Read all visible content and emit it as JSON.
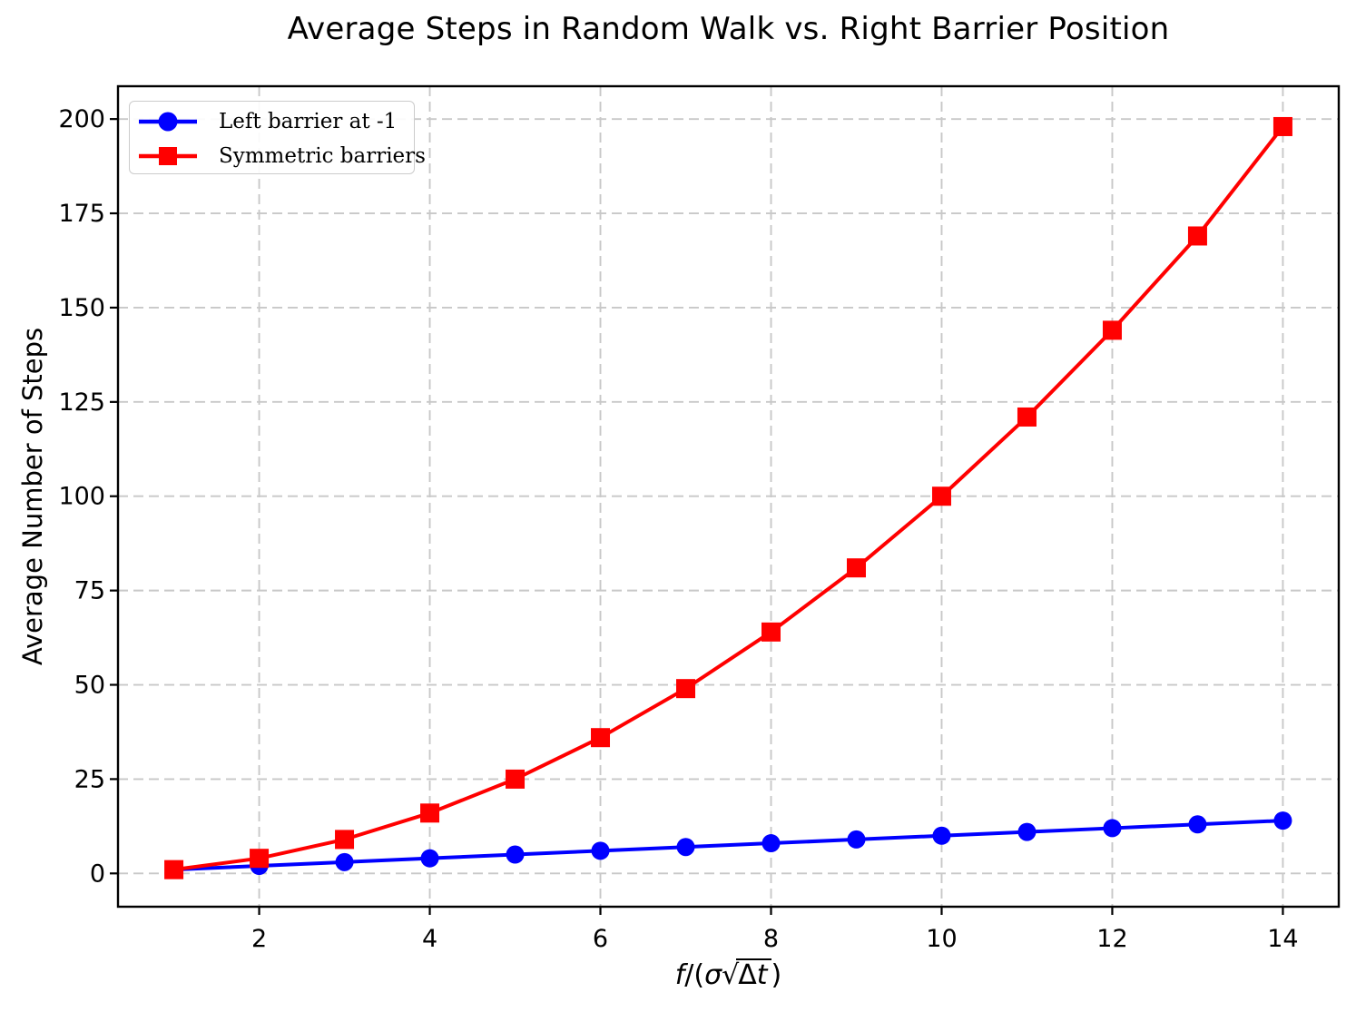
{
  "figure": {
    "background": "#ffffff"
  },
  "chart_data": {
    "type": "line",
    "title": "Average Steps in Random Walk vs. Right Barrier Position",
    "xlabel": "f/(σ√Δt)",
    "ylabel": "Average Number of Steps",
    "x": [
      1,
      2,
      3,
      4,
      5,
      6,
      7,
      8,
      9,
      10,
      11,
      12,
      13,
      14
    ],
    "series": [
      {
        "name": "Left barrier at -1",
        "color": "#0000ff",
        "marker": "circle",
        "values": [
          1,
          2,
          3,
          4,
          5,
          6,
          7,
          8,
          9,
          10,
          11,
          12,
          13,
          14
        ]
      },
      {
        "name": "Symmetric barriers",
        "color": "#ff0000",
        "marker": "square",
        "values": [
          1,
          4,
          9,
          16,
          25,
          36,
          49,
          64,
          81,
          100,
          121,
          144,
          169,
          198
        ]
      }
    ],
    "x_ticks": [
      2,
      4,
      6,
      8,
      10,
      12,
      14
    ],
    "y_ticks": [
      0,
      25,
      50,
      75,
      100,
      125,
      150,
      175,
      200
    ],
    "xlim": [
      0.345,
      14.655
    ],
    "ylim": [
      -8.83,
      208.7
    ],
    "grid": {
      "on": true,
      "style": "dashed",
      "color": "#c8c8c8"
    },
    "legend": {
      "position": "upper left",
      "border_color": "#cccccc"
    },
    "spine_color": "#000000",
    "xlabel_parts": [
      {
        "text": "f",
        "italic": true,
        "radicand": false,
        "sqrt": false
      },
      {
        "text": "/(",
        "italic": false,
        "radicand": false,
        "sqrt": false
      },
      {
        "text": "σ",
        "italic": true,
        "radicand": false,
        "sqrt": false
      },
      {
        "text": "√",
        "italic": false,
        "radicand": false,
        "sqrt": true
      },
      {
        "text": "Δ",
        "italic": false,
        "radicand": true,
        "sqrt": false
      },
      {
        "text": "t",
        "italic": true,
        "radicand": true,
        "sqrt": false
      },
      {
        "text": ")",
        "italic": false,
        "radicand": false,
        "sqrt": false
      }
    ]
  }
}
